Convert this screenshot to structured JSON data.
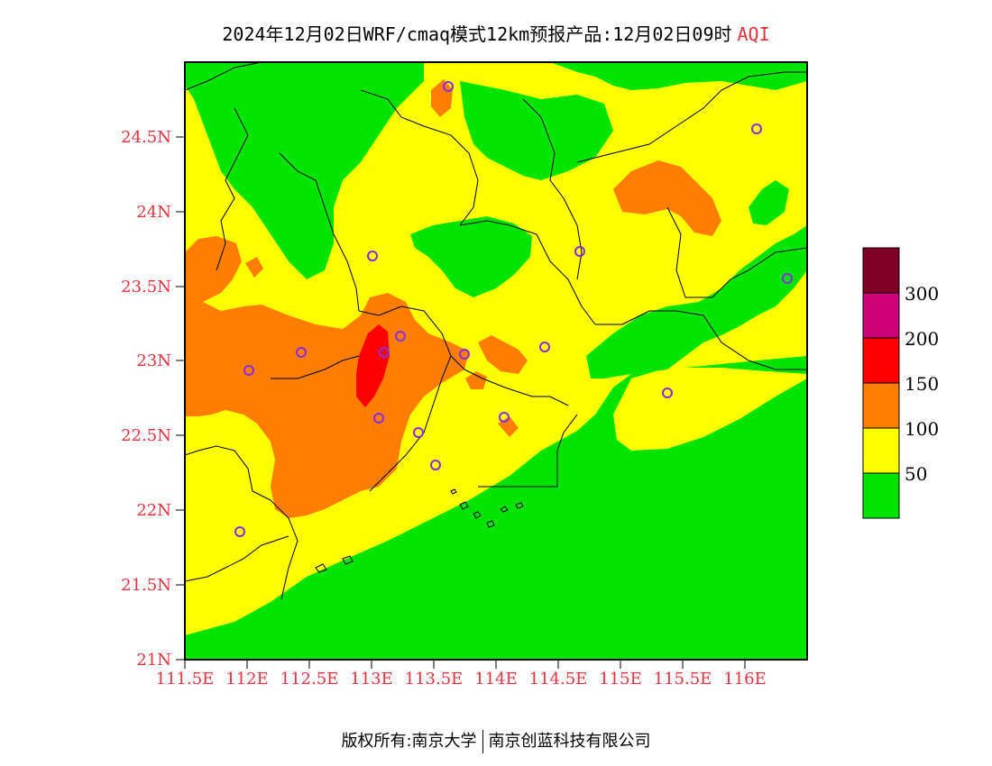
{
  "title": {
    "main": "2024年12月02日WRF/cmaq模式12km预报产品:12月02日09时",
    "variable": "AQI"
  },
  "axes": {
    "lon_ticks": [
      "111.5E",
      "112E",
      "112.5E",
      "113E",
      "113.5E",
      "114E",
      "114.5E",
      "115E",
      "115.5E",
      "116E"
    ],
    "lat_ticks": [
      "21N",
      "21.5N",
      "22N",
      "22.5N",
      "23N",
      "23.5N",
      "24N",
      "24.5N"
    ]
  },
  "legend": {
    "labels": [
      "50",
      "100",
      "150",
      "200",
      "300"
    ],
    "colors": [
      "#00e400",
      "#ffff00",
      "#ff7e00",
      "#ff0000",
      "#cc0077",
      "#7e0023"
    ]
  },
  "colors": {
    "good": "#00e400",
    "moderate": "#ffff00",
    "sensitive": "#ff7e00",
    "unhealthy": "#ff0000",
    "station_marker": "#8a2be2"
  },
  "footer": {
    "left": "版权所有:南京大学",
    "right": "南京创蓝科技有限公司"
  }
}
